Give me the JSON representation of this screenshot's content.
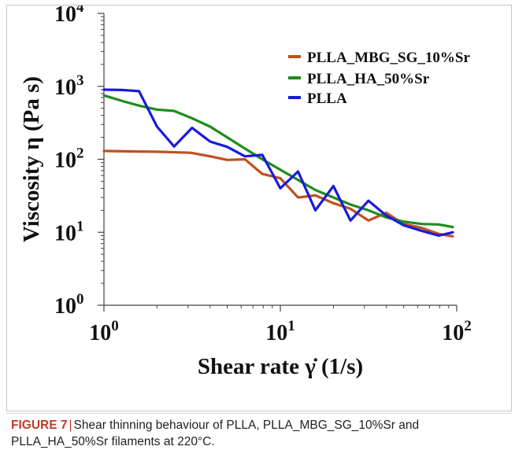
{
  "chart_data": {
    "type": "line",
    "x_scale": "log",
    "y_scale": "log",
    "xlim": [
      1,
      100
    ],
    "ylim": [
      1,
      10000
    ],
    "xlabel": "Shear rate γ̇ (1/s)",
    "ylabel": "Viscosity η (Pa s)",
    "x_ticks": [
      {
        "value": 1,
        "base": "10",
        "exp": "0"
      },
      {
        "value": 10,
        "base": "10",
        "exp": "1"
      },
      {
        "value": 100,
        "base": "10",
        "exp": "2"
      }
    ],
    "y_ticks": [
      {
        "value": 1,
        "base": "10",
        "exp": "0"
      },
      {
        "value": 10,
        "base": "10",
        "exp": "1"
      },
      {
        "value": 100,
        "base": "10",
        "exp": "2"
      },
      {
        "value": 1000,
        "base": "10",
        "exp": "3"
      },
      {
        "value": 10000,
        "base": "10",
        "exp": "4"
      }
    ],
    "legend_position": "top-right",
    "grid": false,
    "series": [
      {
        "name": "PLLA_MBG_SG_10%Sr",
        "color": "#c0501f",
        "points": [
          [
            1,
            130
          ],
          [
            1.6,
            128
          ],
          [
            2,
            127
          ],
          [
            3.1,
            123
          ],
          [
            4,
            110
          ],
          [
            5,
            98
          ],
          [
            6.3,
            100
          ],
          [
            7.9,
            63
          ],
          [
            10,
            55
          ],
          [
            12.6,
            30
          ],
          [
            15.8,
            32
          ],
          [
            20,
            25
          ],
          [
            25,
            21
          ],
          [
            31.6,
            14.5
          ],
          [
            39.8,
            18.5
          ],
          [
            50,
            13
          ],
          [
            63,
            11.5
          ],
          [
            79,
            9.5
          ],
          [
            95,
            8.8
          ]
        ]
      },
      {
        "name": "PLLA_HA_50%Sr",
        "color": "#1e8c1e",
        "points": [
          [
            1,
            750
          ],
          [
            1.3,
            620
          ],
          [
            1.6,
            540
          ],
          [
            2,
            480
          ],
          [
            2.5,
            460
          ],
          [
            3.2,
            360
          ],
          [
            4,
            280
          ],
          [
            5,
            200
          ],
          [
            6.3,
            140
          ],
          [
            7.9,
            100
          ],
          [
            10,
            72
          ],
          [
            12.6,
            52
          ],
          [
            15.8,
            38
          ],
          [
            20,
            30
          ],
          [
            25,
            24
          ],
          [
            31.6,
            20
          ],
          [
            39.8,
            16
          ],
          [
            50,
            14
          ],
          [
            63,
            13
          ],
          [
            79,
            12.8
          ],
          [
            95,
            11.8
          ]
        ]
      },
      {
        "name": "PLLA",
        "color": "#1a1adb",
        "points": [
          [
            1,
            900
          ],
          [
            1.26,
            890
          ],
          [
            1.58,
            860
          ],
          [
            2,
            280
          ],
          [
            2.5,
            150
          ],
          [
            3.16,
            270
          ],
          [
            4,
            175
          ],
          [
            5,
            148
          ],
          [
            6.3,
            110
          ],
          [
            7.9,
            115
          ],
          [
            10,
            40
          ],
          [
            12.6,
            68
          ],
          [
            15.8,
            20
          ],
          [
            20,
            43
          ],
          [
            25,
            14.5
          ],
          [
            31.6,
            27
          ],
          [
            39.8,
            17
          ],
          [
            50,
            12.5
          ],
          [
            63,
            10.5
          ],
          [
            79,
            9
          ],
          [
            95,
            10
          ]
        ]
      }
    ]
  },
  "caption": {
    "label": "FIGURE 7",
    "separator": "|",
    "text": "Shear thinning behaviour of PLLA, PLLA_MBG_SG_10%Sr and PLLA_HA_50%Sr filaments at 220°C."
  }
}
